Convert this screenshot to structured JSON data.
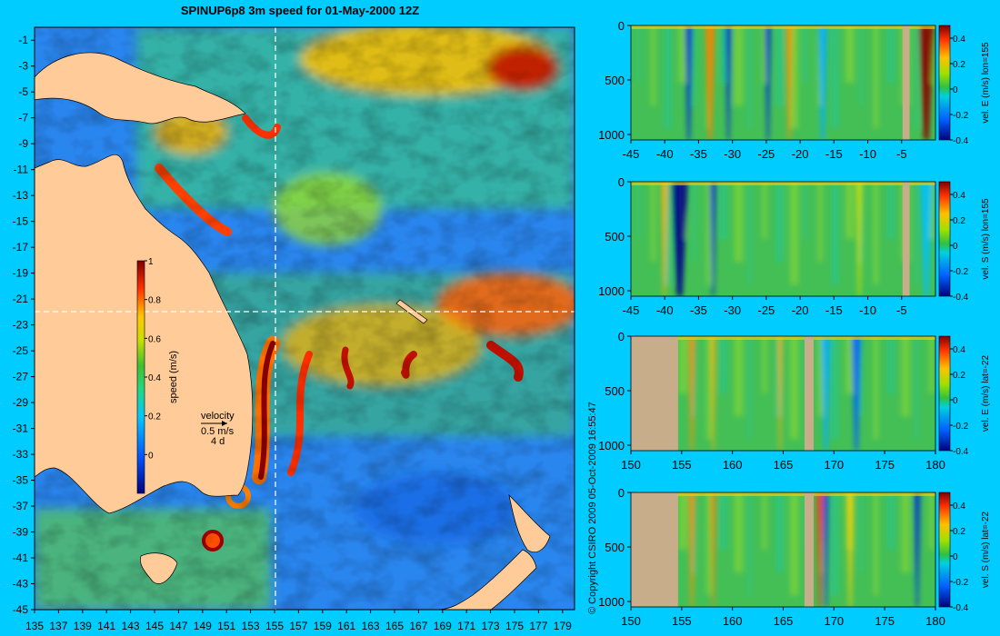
{
  "title": "SPINUP6p8 3m speed for 01-May-2000 12Z",
  "copyright": "© Copyright CSIRO 2009   05-Oct-2009 16:55:47",
  "colors": {
    "background": "#00ccff",
    "land_map": "#ffcc99",
    "land_section": "#c8ad8a",
    "crosshair": "#ffffff"
  },
  "chart_data": [
    {
      "type": "heatmap",
      "title": "SPINUP6p8 3m speed for 01-May-2000 12Z",
      "x_ticks": [
        "135",
        "137",
        "139",
        "141",
        "143",
        "145",
        "147",
        "149",
        "151",
        "153",
        "155",
        "157",
        "159",
        "161",
        "163",
        "165",
        "167",
        "169",
        "171",
        "173",
        "175",
        "177",
        "179"
      ],
      "y_ticks": [
        "-1",
        "-3",
        "-5",
        "-7",
        "-9",
        "-11",
        "-13",
        "-15",
        "-17",
        "-19",
        "-21",
        "-23",
        "-25",
        "-27",
        "-29",
        "-31",
        "-33",
        "-35",
        "-37",
        "-39",
        "-41",
        "-43",
        "-45"
      ],
      "xlim": [
        135,
        180
      ],
      "ylim": [
        -45,
        0
      ],
      "crosshair": {
        "lon": 155,
        "lat": -22
      },
      "colorbar": {
        "label": "speed (m/s)",
        "ticks": [
          "1",
          "0.8",
          "0.6",
          "0.4",
          "0.2",
          "0"
        ],
        "range": [
          -0.2,
          1
        ]
      },
      "legend": {
        "title": "velocity",
        "speed": "0.5 m/s",
        "duration": "4 d"
      }
    },
    {
      "type": "heatmap",
      "xlim": [
        -45,
        0
      ],
      "ylim": [
        1050,
        0
      ],
      "x_ticks": [
        "-45",
        "-40",
        "-35",
        "-30",
        "-25",
        "-20",
        "-15",
        "-10",
        "-5"
      ],
      "y_ticks": [
        "0",
        "500",
        "1000"
      ],
      "colorbar": {
        "label": "vel. E (m/s) lon=155",
        "ticks": [
          "0.4",
          "0.2",
          "0",
          "-0.2",
          "-0.4"
        ],
        "range": [
          -0.4,
          0.5
        ]
      }
    },
    {
      "type": "heatmap",
      "xlim": [
        -45,
        0
      ],
      "ylim": [
        1050,
        0
      ],
      "x_ticks": [
        "-45",
        "-40",
        "-35",
        "-30",
        "-25",
        "-20",
        "-15",
        "-10",
        "-5"
      ],
      "y_ticks": [
        "0",
        "500",
        "1000"
      ],
      "colorbar": {
        "label": "vel. S (m/s) lon=155",
        "ticks": [
          "0.4",
          "0.2",
          "0",
          "-0.2",
          "-0.4"
        ],
        "range": [
          -0.4,
          0.5
        ]
      }
    },
    {
      "type": "heatmap",
      "xlim": [
        150,
        180
      ],
      "ylim": [
        1050,
        0
      ],
      "x_ticks": [
        "150",
        "155",
        "160",
        "165",
        "170",
        "175",
        "180"
      ],
      "y_ticks": [
        "0",
        "500",
        "1000"
      ],
      "colorbar": {
        "label": "vel. E (m/s) lat=-22",
        "ticks": [
          "0.4",
          "0.2",
          "0",
          "-0.2",
          "-0.4"
        ],
        "range": [
          -0.4,
          0.5
        ]
      }
    },
    {
      "type": "heatmap",
      "xlim": [
        150,
        180
      ],
      "ylim": [
        1050,
        0
      ],
      "x_ticks": [
        "150",
        "155",
        "160",
        "165",
        "170",
        "175",
        "180"
      ],
      "y_ticks": [
        "0",
        "500",
        "1000"
      ],
      "colorbar": {
        "label": "vel. S (m/s) lat=-22",
        "ticks": [
          "0.4",
          "0.2",
          "0",
          "-0.2",
          "-0.4"
        ],
        "range": [
          -0.4,
          0.5
        ]
      }
    }
  ]
}
